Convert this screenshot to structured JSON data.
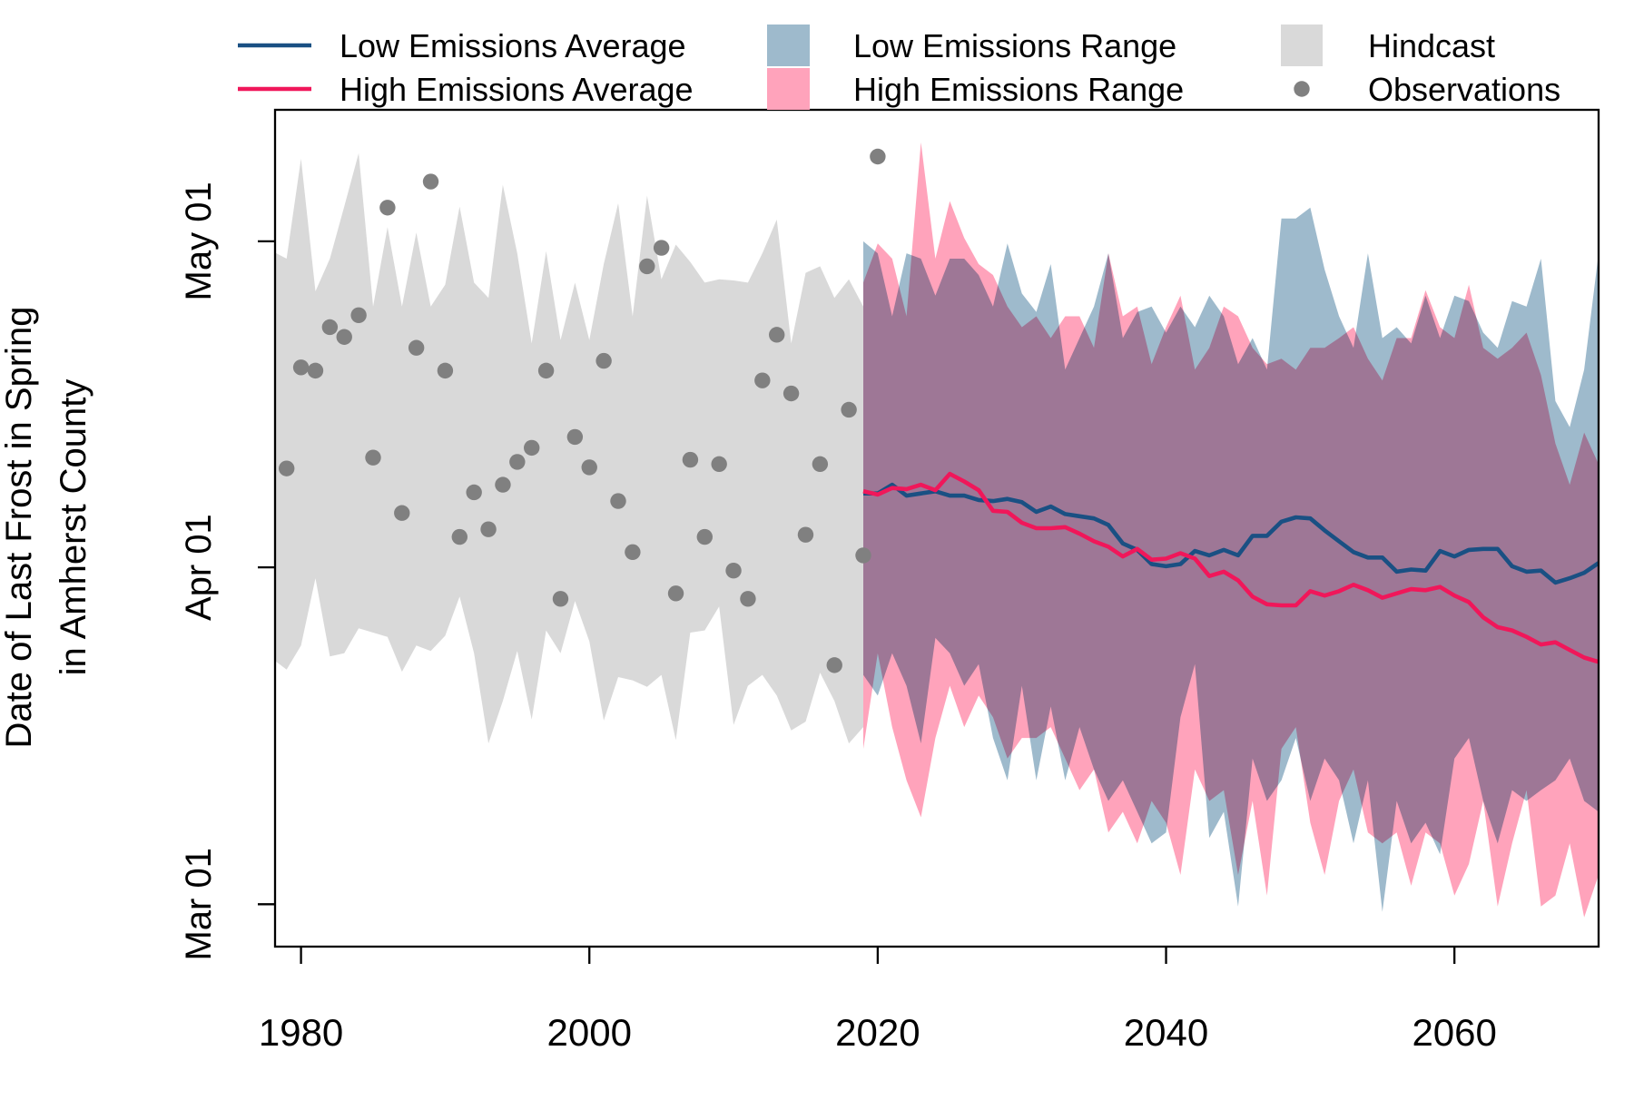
{
  "chart_data": {
    "type": "line",
    "y_label": [
      "Date of Last Frost in Spring",
      "in Amherst County"
    ],
    "xlim": [
      1978.2,
      2070
    ],
    "xticks": [
      1980,
      2000,
      2020,
      2040,
      2060
    ],
    "ylim": [
      56.1,
      133.1
    ],
    "yticks": [
      {
        "value": 60,
        "label": "Mar 01"
      },
      {
        "value": 91,
        "label": "Apr 01"
      },
      {
        "value": 121,
        "label": "May 01"
      }
    ],
    "series": [
      {
        "name": "Low Emissions Average",
        "kind": "line",
        "color": "#1a5083",
        "x": [
          2019,
          2020,
          2021,
          2022,
          2023,
          2024,
          2025,
          2026,
          2027,
          2028,
          2029,
          2030,
          2031,
          2032,
          2033,
          2034,
          2035,
          2036,
          2037,
          2038,
          2039,
          2040,
          2041,
          2042,
          2043,
          2044,
          2045,
          2046,
          2047,
          2048,
          2049,
          2050,
          2051,
          2052,
          2053,
          2054,
          2055,
          2056,
          2057,
          2058,
          2059,
          2060,
          2061,
          2062,
          2063,
          2064,
          2065,
          2066,
          2067,
          2068,
          2069,
          2070
        ],
        "values": [
          97.8,
          97.8,
          98.6,
          97.6,
          97.8,
          98.0,
          97.6,
          97.6,
          97.2,
          97.1,
          97.3,
          97.0,
          96.1,
          96.6,
          95.9,
          95.7,
          95.5,
          94.9,
          93.2,
          92.6,
          91.3,
          91.1,
          91.3,
          92.5,
          92.1,
          92.6,
          92.1,
          93.9,
          93.9,
          95.2,
          95.6,
          95.5,
          94.4,
          93.4,
          92.4,
          91.9,
          91.9,
          90.6,
          90.8,
          90.7,
          92.5,
          92.0,
          92.6,
          92.7,
          92.7,
          91.1,
          90.6,
          90.7,
          89.6,
          90.0,
          90.5,
          91.4
        ]
      },
      {
        "name": "High Emissions Average",
        "kind": "line",
        "color": "#f0175a",
        "x": [
          2019,
          2020,
          2021,
          2022,
          2023,
          2024,
          2025,
          2026,
          2027,
          2028,
          2029,
          2030,
          2031,
          2032,
          2033,
          2034,
          2035,
          2036,
          2037,
          2038,
          2039,
          2040,
          2041,
          2042,
          2043,
          2044,
          2045,
          2046,
          2047,
          2048,
          2049,
          2050,
          2051,
          2052,
          2053,
          2054,
          2055,
          2056,
          2057,
          2058,
          2059,
          2060,
          2061,
          2062,
          2063,
          2064,
          2065,
          2066,
          2067,
          2068,
          2069,
          2070
        ],
        "values": [
          98.0,
          97.7,
          98.3,
          98.2,
          98.6,
          98.1,
          99.6,
          98.9,
          98.1,
          96.2,
          96.1,
          95.1,
          94.6,
          94.6,
          94.7,
          94.1,
          93.4,
          92.9,
          92.0,
          92.7,
          91.7,
          91.8,
          92.3,
          91.8,
          90.2,
          90.6,
          89.8,
          88.3,
          87.6,
          87.5,
          87.5,
          88.8,
          88.4,
          88.8,
          89.4,
          88.9,
          88.2,
          88.6,
          89.0,
          88.9,
          89.2,
          88.4,
          87.8,
          86.4,
          85.5,
          85.2,
          84.6,
          83.9,
          84.1,
          83.4,
          82.7,
          82.3
        ]
      },
      {
        "name": "Low Emissions Range",
        "kind": "band",
        "color": "#9ebacc",
        "x": [
          2019,
          2020,
          2021,
          2022,
          2023,
          2024,
          2025,
          2026,
          2027,
          2028,
          2029,
          2030,
          2031,
          2032,
          2033,
          2034,
          2035,
          2036,
          2037,
          2038,
          2039,
          2040,
          2041,
          2042,
          2043,
          2044,
          2045,
          2046,
          2047,
          2048,
          2049,
          2050,
          2051,
          2052,
          2053,
          2054,
          2055,
          2056,
          2057,
          2058,
          2059,
          2060,
          2061,
          2062,
          2063,
          2064,
          2065,
          2066,
          2067,
          2068,
          2069,
          2070
        ],
        "upper": [
          121.0,
          119.9,
          114.1,
          119.9,
          119.4,
          116.0,
          119.4,
          119.4,
          117.9,
          115.0,
          120.8,
          116.2,
          114.5,
          118.9,
          109.2,
          112.1,
          115.0,
          119.9,
          112.1,
          114.5,
          115.0,
          112.6,
          115.0,
          113.1,
          116.0,
          114.1,
          109.7,
          112.1,
          109.2,
          123.1,
          123.1,
          124.1,
          118.4,
          114.1,
          111.2,
          119.9,
          112.1,
          113.1,
          111.6,
          116.0,
          112.1,
          116.0,
          115.5,
          112.6,
          111.2,
          115.5,
          115.0,
          119.4,
          106.3,
          103.9,
          109.2,
          119.9
        ],
        "lower": [
          81.1,
          79.2,
          83.1,
          80.1,
          74.8,
          84.5,
          83.1,
          80.1,
          82.1,
          75.3,
          71.4,
          80.1,
          71.4,
          78.2,
          71.4,
          76.3,
          72.4,
          69.5,
          71.4,
          68.5,
          65.6,
          66.6,
          77.2,
          82.1,
          66.1,
          68.5,
          59.8,
          73.4,
          69.5,
          71.4,
          75.3,
          69.5,
          73.4,
          71.4,
          65.6,
          71.4,
          59.3,
          69.5,
          65.6,
          67.5,
          64.6,
          73.4,
          75.3,
          69.5,
          65.6,
          70.5,
          69.5,
          70.5,
          71.4,
          73.4,
          69.5,
          68.5
        ]
      },
      {
        "name": "High Emissions Range",
        "kind": "band",
        "color": "#ffa3bb",
        "x": [
          2019,
          2020,
          2021,
          2022,
          2023,
          2024,
          2025,
          2026,
          2027,
          2028,
          2029,
          2030,
          2031,
          2032,
          2033,
          2034,
          2035,
          2036,
          2037,
          2038,
          2039,
          2040,
          2041,
          2042,
          2043,
          2044,
          2045,
          2046,
          2047,
          2048,
          2049,
          2050,
          2051,
          2052,
          2053,
          2054,
          2055,
          2056,
          2057,
          2058,
          2059,
          2060,
          2061,
          2062,
          2063,
          2064,
          2065,
          2066,
          2067,
          2068,
          2069,
          2070
        ],
        "upper": [
          117.2,
          120.8,
          119.4,
          114.1,
          130.1,
          119.4,
          124.7,
          121.3,
          118.9,
          117.9,
          115.0,
          113.1,
          114.1,
          112.1,
          114.1,
          114.1,
          111.2,
          119.9,
          114.1,
          115.0,
          109.7,
          113.1,
          116.0,
          109.2,
          111.2,
          115.0,
          114.1,
          111.2,
          109.7,
          110.2,
          109.2,
          111.2,
          111.2,
          112.1,
          113.1,
          110.2,
          108.2,
          112.1,
          112.1,
          116.5,
          113.1,
          112.1,
          117.0,
          111.2,
          110.2,
          111.2,
          112.6,
          108.7,
          102.4,
          98.6,
          103.4,
          100.5
        ],
        "lower": [
          74.3,
          83.1,
          76.3,
          71.4,
          68.0,
          75.3,
          80.1,
          76.3,
          79.2,
          77.2,
          73.4,
          75.3,
          75.3,
          76.3,
          73.4,
          70.5,
          72.4,
          66.6,
          68.5,
          65.6,
          69.5,
          67.5,
          62.7,
          72.4,
          69.5,
          70.5,
          62.7,
          69.5,
          60.8,
          74.3,
          76.3,
          67.5,
          62.7,
          69.5,
          72.4,
          66.6,
          65.6,
          66.6,
          61.7,
          66.6,
          65.6,
          60.8,
          63.7,
          69.5,
          59.8,
          65.6,
          70.5,
          59.8,
          60.8,
          65.6,
          58.8,
          62.7
        ]
      },
      {
        "name": "Hindcast",
        "kind": "band",
        "color": "#d9d9d9",
        "x": [
          1978,
          1979,
          1980,
          1981,
          1982,
          1983,
          1984,
          1985,
          1986,
          1987,
          1988,
          1989,
          1990,
          1991,
          1992,
          1993,
          1994,
          1995,
          1996,
          1997,
          1998,
          1999,
          2000,
          2001,
          2002,
          2003,
          2004,
          2005,
          2006,
          2007,
          2008,
          2009,
          2010,
          2011,
          2012,
          2013,
          2014,
          2015,
          2016,
          2017,
          2018,
          2019
        ],
        "upper": [
          120.1,
          119.4,
          128.6,
          116.4,
          119.4,
          124.2,
          129.1,
          115.0,
          122.3,
          115.0,
          121.8,
          115.0,
          117.0,
          124.2,
          117.2,
          115.8,
          126.2,
          119.9,
          111.6,
          120.1,
          111.9,
          117.2,
          111.9,
          118.9,
          124.5,
          114.1,
          125.2,
          117.5,
          120.7,
          119.1,
          117.2,
          117.5,
          117.4,
          117.2,
          119.9,
          123.0,
          111.6,
          118.1,
          118.7,
          115.8,
          117.5,
          115.0
        ],
        "lower": [
          82.6,
          81.6,
          83.8,
          90.0,
          82.8,
          83.1,
          85.4,
          85.0,
          84.6,
          81.4,
          83.8,
          83.3,
          84.7,
          88.3,
          83.1,
          74.8,
          78.7,
          83.3,
          77.0,
          85.2,
          83.1,
          87.9,
          84.2,
          76.9,
          80.9,
          80.6,
          80.0,
          81.1,
          75.1,
          85.0,
          85.2,
          87.4,
          76.5,
          80.1,
          81.1,
          79.2,
          76.0,
          76.8,
          81.3,
          78.7,
          74.8,
          76.3
        ]
      },
      {
        "name": "Observations",
        "kind": "points",
        "color": "#808080",
        "x": [
          1979,
          1980,
          1981,
          1982,
          1983,
          1984,
          1985,
          1986,
          1987,
          1988,
          1989,
          1990,
          1991,
          1992,
          1993,
          1994,
          1995,
          1996,
          1997,
          1998,
          1999,
          2000,
          2001,
          2002,
          2003,
          2004,
          2005,
          2006,
          2007,
          2008,
          2009,
          2010,
          2011,
          2012,
          2013,
          2014,
          2015,
          2016,
          2017,
          2018,
          2019,
          2020
        ],
        "values": [
          100.1,
          109.4,
          109.1,
          113.1,
          112.2,
          114.2,
          101.1,
          124.1,
          96.0,
          111.2,
          126.5,
          109.1,
          93.8,
          97.9,
          94.5,
          98.6,
          100.7,
          102.0,
          109.1,
          88.1,
          103.0,
          100.2,
          110.0,
          97.1,
          92.4,
          118.7,
          120.4,
          88.6,
          100.9,
          93.8,
          100.5,
          90.7,
          88.1,
          108.2,
          112.4,
          107.0,
          94.0,
          100.5,
          82.0,
          105.5,
          92.1,
          128.8
        ]
      }
    ]
  }
}
